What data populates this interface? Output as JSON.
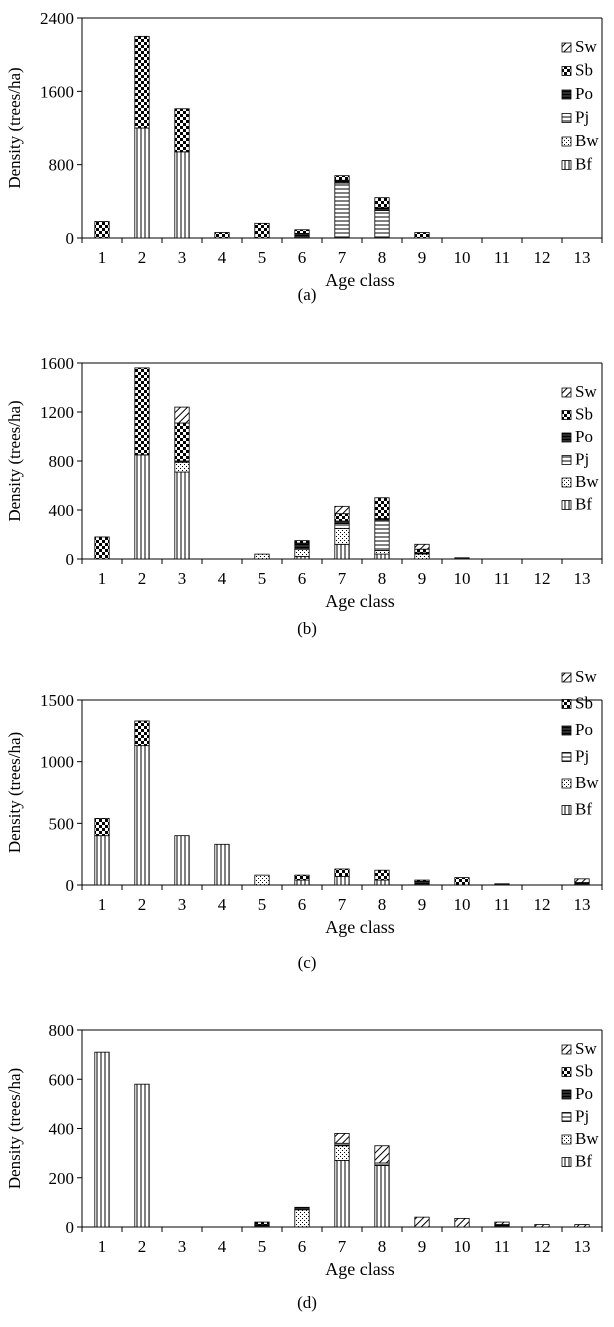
{
  "figure": {
    "panels": [
      "(a)",
      "(b)",
      "(c)",
      "(d)"
    ]
  },
  "chart_data": [
    {
      "type": "bar",
      "stacked": true,
      "panel_label": "(a)",
      "xlabel": "Age class",
      "ylabel": "Density (trees/ha)",
      "categories": [
        "1",
        "2",
        "3",
        "4",
        "5",
        "6",
        "7",
        "8",
        "9",
        "10",
        "11",
        "12",
        "13"
      ],
      "ylim": [
        0,
        2400
      ],
      "yticks": [
        0,
        800,
        1600,
        2400
      ],
      "legend_position": "right",
      "series": [
        {
          "name": "Bf",
          "values": [
            0,
            1200,
            940,
            0,
            0,
            0,
            0,
            0,
            0,
            0,
            0,
            0,
            0
          ]
        },
        {
          "name": "Bw",
          "values": [
            0,
            0,
            0,
            0,
            0,
            0,
            0,
            0,
            0,
            0,
            0,
            0,
            0
          ]
        },
        {
          "name": "Pj",
          "values": [
            0,
            0,
            0,
            0,
            0,
            0,
            600,
            300,
            0,
            0,
            0,
            0,
            0
          ]
        },
        {
          "name": "Po",
          "values": [
            0,
            0,
            0,
            0,
            0,
            50,
            30,
            30,
            0,
            0,
            0,
            0,
            0
          ]
        },
        {
          "name": "Sb",
          "values": [
            180,
            1000,
            470,
            60,
            160,
            40,
            50,
            110,
            60,
            0,
            0,
            0,
            0
          ]
        },
        {
          "name": "Sw",
          "values": [
            0,
            0,
            0,
            0,
            0,
            0,
            0,
            0,
            0,
            0,
            0,
            0,
            0
          ]
        }
      ]
    },
    {
      "type": "bar",
      "stacked": true,
      "panel_label": "(b)",
      "xlabel": "Age class",
      "ylabel": "Density (trees/ha)",
      "categories": [
        "1",
        "2",
        "3",
        "4",
        "5",
        "6",
        "7",
        "8",
        "9",
        "10",
        "11",
        "12",
        "13"
      ],
      "ylim": [
        0,
        1600
      ],
      "yticks": [
        0,
        400,
        800,
        1200,
        1600
      ],
      "legend_position": "right",
      "series": [
        {
          "name": "Bf",
          "values": [
            0,
            850,
            710,
            0,
            0,
            20,
            120,
            40,
            0,
            0,
            0,
            0,
            0
          ]
        },
        {
          "name": "Bw",
          "values": [
            0,
            0,
            80,
            0,
            40,
            60,
            130,
            30,
            40,
            0,
            0,
            0,
            0
          ]
        },
        {
          "name": "Pj",
          "values": [
            0,
            0,
            0,
            0,
            0,
            0,
            40,
            250,
            0,
            0,
            0,
            0,
            0
          ]
        },
        {
          "name": "Po",
          "values": [
            0,
            0,
            10,
            0,
            0,
            50,
            20,
            10,
            10,
            10,
            0,
            0,
            0
          ]
        },
        {
          "name": "Sb",
          "values": [
            180,
            710,
            310,
            0,
            0,
            20,
            60,
            170,
            30,
            0,
            0,
            0,
            0
          ]
        },
        {
          "name": "Sw",
          "values": [
            0,
            0,
            130,
            0,
            0,
            0,
            60,
            0,
            40,
            0,
            0,
            0,
            0
          ]
        }
      ]
    },
    {
      "type": "bar",
      "stacked": true,
      "panel_label": "(c)",
      "xlabel": "Age class",
      "ylabel": "Density (trees/ha)",
      "categories": [
        "1",
        "2",
        "3",
        "4",
        "5",
        "6",
        "7",
        "8",
        "9",
        "10",
        "11",
        "12",
        "13"
      ],
      "ylim": [
        0,
        1500
      ],
      "yticks": [
        0,
        500,
        1000,
        1500
      ],
      "legend_position": "right",
      "series": [
        {
          "name": "Bf",
          "values": [
            400,
            1130,
            400,
            330,
            0,
            40,
            70,
            40,
            0,
            0,
            0,
            0,
            0
          ]
        },
        {
          "name": "Bw",
          "values": [
            0,
            0,
            0,
            0,
            80,
            0,
            0,
            0,
            0,
            0,
            0,
            0,
            0
          ]
        },
        {
          "name": "Pj",
          "values": [
            0,
            0,
            0,
            0,
            0,
            0,
            0,
            0,
            0,
            0,
            0,
            0,
            0
          ]
        },
        {
          "name": "Po",
          "values": [
            0,
            0,
            0,
            0,
            0,
            0,
            0,
            0,
            30,
            0,
            10,
            0,
            20
          ]
        },
        {
          "name": "Sb",
          "values": [
            140,
            200,
            0,
            0,
            0,
            40,
            60,
            80,
            10,
            60,
            0,
            0,
            0
          ]
        },
        {
          "name": "Sw",
          "values": [
            0,
            0,
            0,
            0,
            0,
            0,
            0,
            0,
            0,
            0,
            0,
            0,
            30
          ]
        }
      ]
    },
    {
      "type": "bar",
      "stacked": true,
      "panel_label": "(d)",
      "xlabel": "Age class",
      "ylabel": "Density (trees/ha)",
      "categories": [
        "1",
        "2",
        "3",
        "4",
        "5",
        "6",
        "7",
        "8",
        "9",
        "10",
        "11",
        "12",
        "13"
      ],
      "ylim": [
        0,
        800
      ],
      "yticks": [
        0,
        200,
        400,
        600,
        800
      ],
      "legend_position": "right",
      "series": [
        {
          "name": "Bf",
          "values": [
            710,
            580,
            0,
            0,
            0,
            0,
            270,
            250,
            0,
            0,
            0,
            0,
            0
          ]
        },
        {
          "name": "Bw",
          "values": [
            0,
            0,
            0,
            0,
            0,
            70,
            60,
            0,
            0,
            0,
            0,
            0,
            0
          ]
        },
        {
          "name": "Pj",
          "values": [
            0,
            0,
            0,
            0,
            0,
            0,
            10,
            10,
            0,
            0,
            0,
            0,
            0
          ]
        },
        {
          "name": "Po",
          "values": [
            0,
            0,
            0,
            0,
            10,
            10,
            0,
            0,
            0,
            0,
            10,
            0,
            0
          ]
        },
        {
          "name": "Sb",
          "values": [
            0,
            0,
            0,
            0,
            10,
            0,
            0,
            0,
            0,
            0,
            0,
            0,
            0
          ]
        },
        {
          "name": "Sw",
          "values": [
            0,
            0,
            0,
            0,
            0,
            0,
            40,
            70,
            40,
            35,
            10,
            10,
            10
          ]
        }
      ]
    }
  ]
}
